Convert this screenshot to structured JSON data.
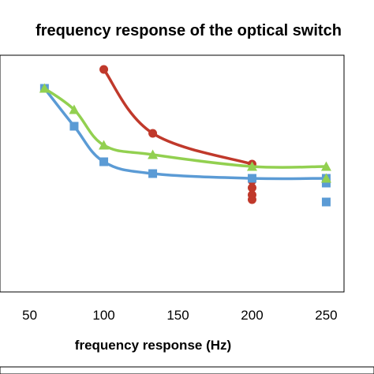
{
  "chart_data": {
    "type": "line",
    "title": "frequency response of the optical switch",
    "xlabel": "frequency response  (Hz)",
    "ylabel": "",
    "xlim": [
      30,
      262
    ],
    "ylim": [
      0,
      1
    ],
    "x_ticks": [
      50,
      100,
      150,
      200,
      250
    ],
    "grid": false,
    "legend": "none",
    "series": [
      {
        "color": "#c0392b",
        "marker": "circle",
        "points": [
          [
            100,
            0.94
          ],
          [
            133,
            0.67
          ],
          [
            200,
            0.54
          ],
          [
            200,
            0.47
          ],
          [
            200,
            0.44
          ],
          [
            200,
            0.41
          ],
          [
            200,
            0.39
          ]
        ]
      },
      {
        "color": "#5b9bd5",
        "marker": "square",
        "points": [
          [
            60,
            0.86
          ],
          [
            80,
            0.7
          ],
          [
            100,
            0.55
          ],
          [
            133,
            0.5
          ],
          [
            200,
            0.48
          ],
          [
            250,
            0.48
          ],
          [
            250,
            0.46
          ],
          [
            250,
            0.38
          ]
        ]
      },
      {
        "color": "#92d050",
        "marker": "triangle",
        "points": [
          [
            60,
            0.86
          ],
          [
            80,
            0.77
          ],
          [
            100,
            0.62
          ],
          [
            133,
            0.58
          ],
          [
            200,
            0.53
          ],
          [
            250,
            0.53
          ],
          [
            250,
            0.48
          ]
        ]
      }
    ]
  }
}
